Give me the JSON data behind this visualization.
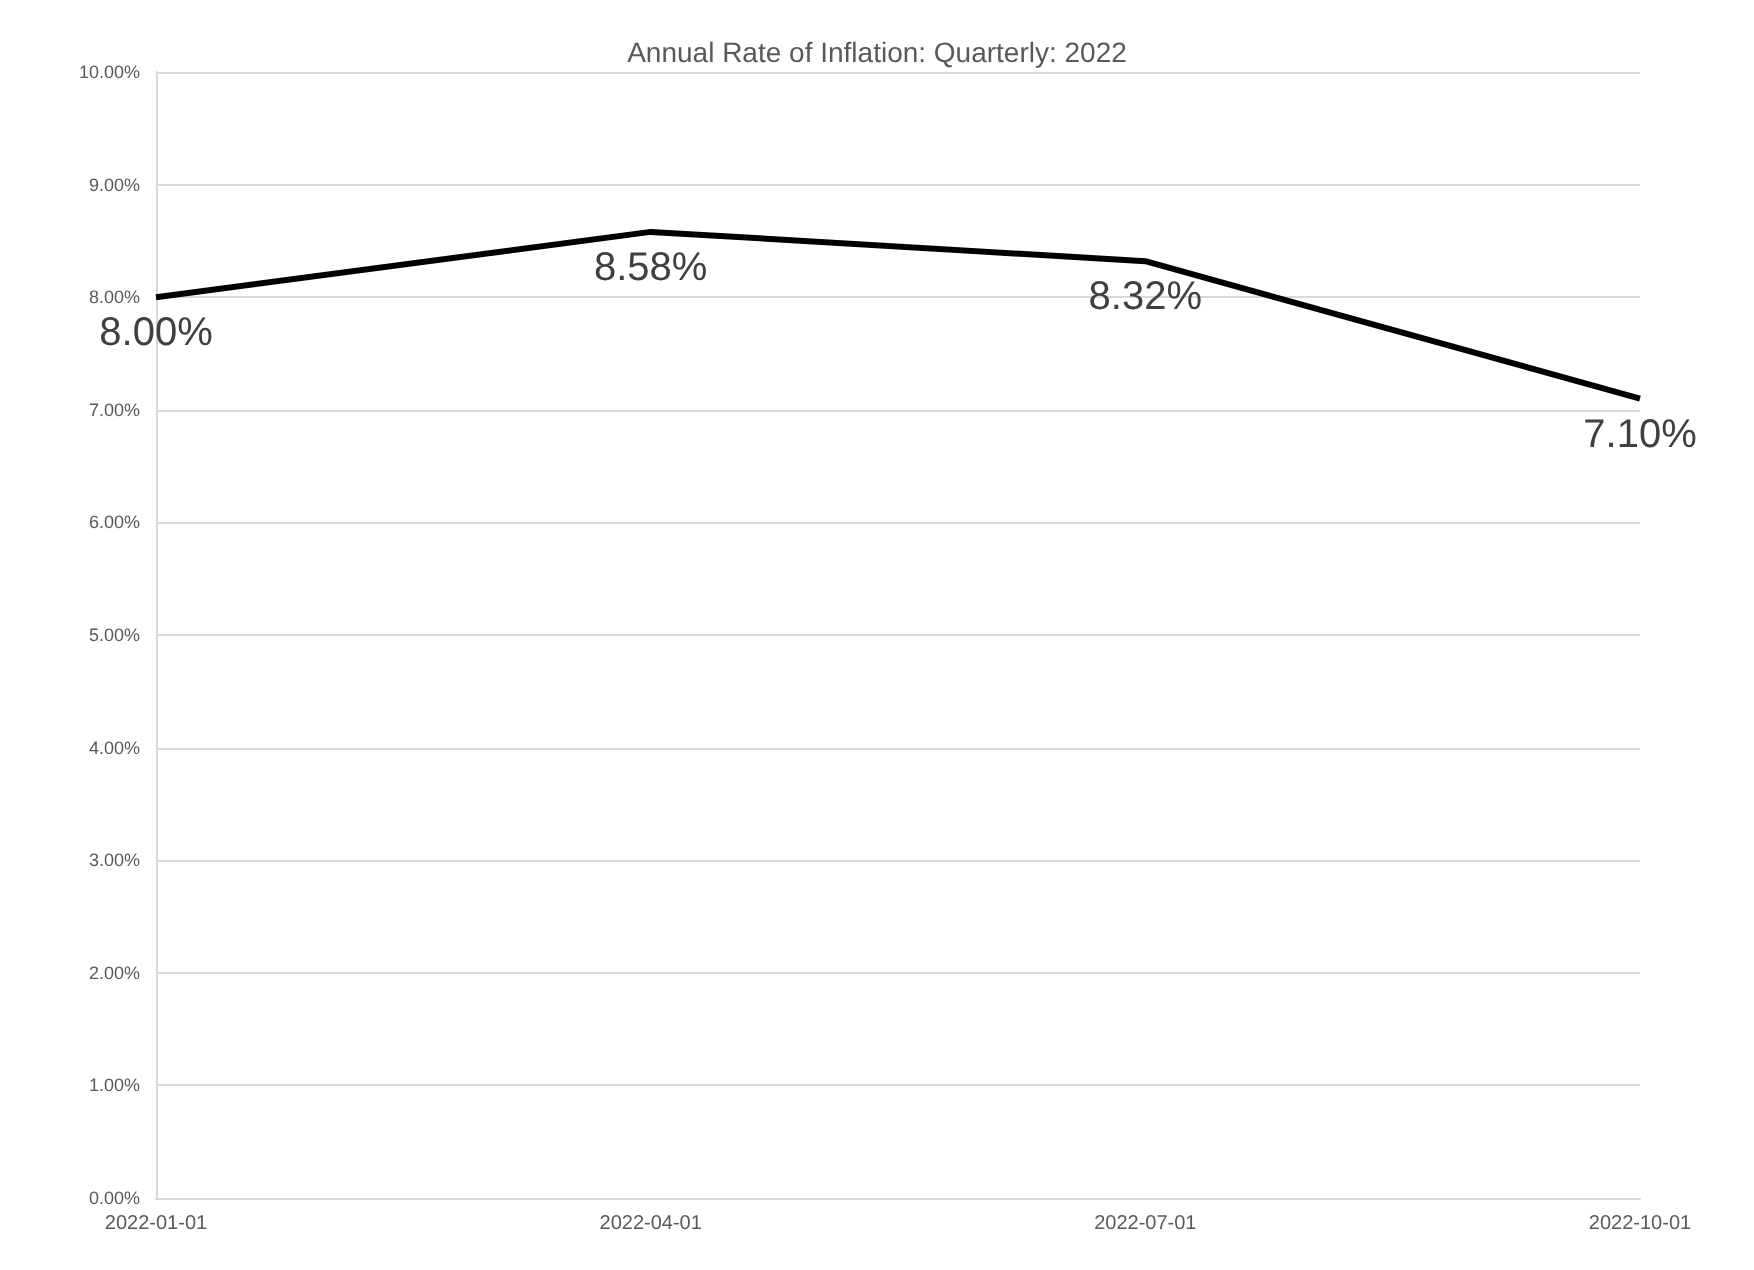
{
  "chart_data": {
    "type": "line",
    "title": "Annual Rate of Inflation: Quarterly: 2022",
    "categories": [
      "2022-01-01",
      "2022-04-01",
      "2022-07-01",
      "2022-10-01"
    ],
    "series": [
      {
        "color": "#000000",
        "values": [
          8.0,
          8.58,
          8.32,
          7.1
        ],
        "value_labels": [
          "8.00%",
          "8.58%",
          "8.32%",
          "7.10%"
        ]
      }
    ],
    "ylim": [
      0,
      10
    ],
    "yticks": [
      {
        "value": 0,
        "label": "0.00%"
      },
      {
        "value": 1,
        "label": "1.00%"
      },
      {
        "value": 2,
        "label": "2.00%"
      },
      {
        "value": 3,
        "label": "3.00%"
      },
      {
        "value": 4,
        "label": "4.00%"
      },
      {
        "value": 5,
        "label": "5.00%"
      },
      {
        "value": 6,
        "label": "6.00%"
      },
      {
        "value": 7,
        "label": "7.00%"
      },
      {
        "value": 8,
        "label": "8.00%"
      },
      {
        "value": 9,
        "label": "9.00%"
      },
      {
        "value": 10,
        "label": "10.00%"
      }
    ],
    "grid": "y",
    "marker": "none",
    "line_style": "solid"
  }
}
